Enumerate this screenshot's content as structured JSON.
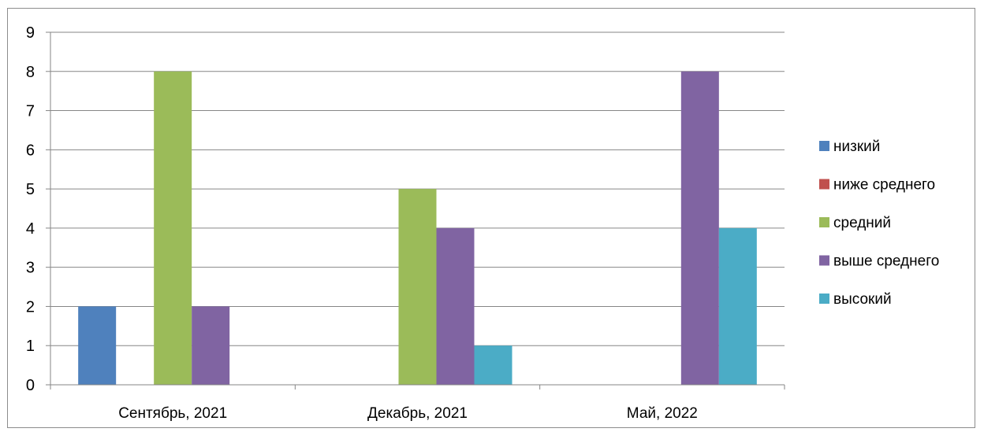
{
  "chart_data": {
    "type": "bar",
    "categories": [
      "Сентябрь, 2021",
      "Декабрь, 2021",
      "Май, 2022"
    ],
    "series": [
      {
        "name": "низкий",
        "color": "#4f81bd",
        "values": [
          2,
          0,
          0
        ]
      },
      {
        "name": "ниже среднего",
        "color": "#c0504d",
        "values": [
          0,
          0,
          0
        ]
      },
      {
        "name": "средний",
        "color": "#9bbb59",
        "values": [
          8,
          5,
          0
        ]
      },
      {
        "name": "выше среднего",
        "color": "#8064a2",
        "values": [
          2,
          4,
          8
        ]
      },
      {
        "name": "высокий",
        "color": "#4bacc6",
        "values": [
          0,
          1,
          4
        ]
      }
    ],
    "yticks": [
      "0",
      "1",
      "2",
      "3",
      "4",
      "5",
      "6",
      "7",
      "8",
      "9"
    ],
    "ylim": [
      0,
      9
    ],
    "grid": true,
    "legend_position": "right"
  }
}
